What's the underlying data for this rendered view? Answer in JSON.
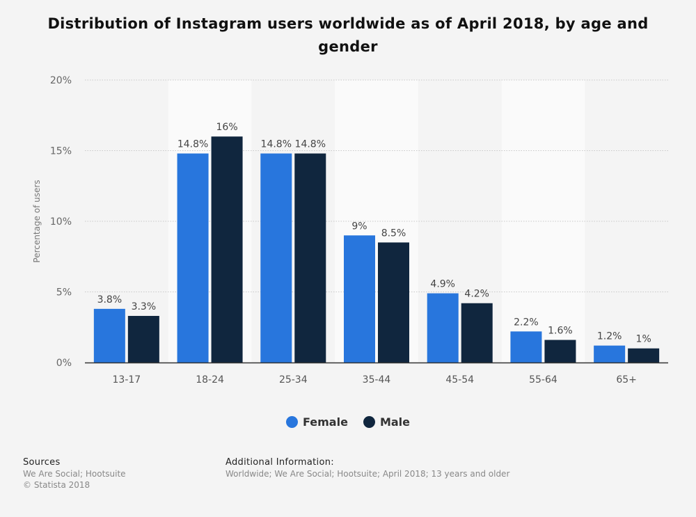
{
  "title": "Distribution of Instagram users worldwide as of April 2018, by age and gender",
  "chart_data": {
    "type": "bar",
    "categories": [
      "13-17",
      "18-24",
      "25-34",
      "35-44",
      "45-54",
      "55-64",
      "65+"
    ],
    "series": [
      {
        "name": "Female",
        "color": "#2876dd",
        "values": [
          3.8,
          14.8,
          14.8,
          9,
          4.9,
          2.2,
          1.2
        ],
        "labels": [
          "3.8%",
          "14.8%",
          "14.8%",
          "9%",
          "4.9%",
          "2.2%",
          "1.2%"
        ]
      },
      {
        "name": "Male",
        "color": "#10263e",
        "values": [
          3.3,
          16,
          14.8,
          8.5,
          4.2,
          1.6,
          1
        ],
        "labels": [
          "3.3%",
          "16%",
          "14.8%",
          "8.5%",
          "4.2%",
          "1.6%",
          "1%"
        ]
      }
    ],
    "ylabel": "Percentage of users",
    "ylim": [
      0,
      20
    ],
    "yticks": [
      0,
      5,
      10,
      15,
      20
    ],
    "ytick_labels": [
      "0%",
      "5%",
      "10%",
      "15%",
      "20%"
    ],
    "grid": true,
    "legend": "bottom-center"
  },
  "legend": {
    "female": "Female",
    "male": "Male"
  },
  "footer": {
    "sources_heading": "Sources",
    "sources_text": "We Are Social; Hootsuite",
    "copyright": "© Statista 2018",
    "additional_heading": "Additional Information:",
    "additional_text": "Worldwide; We Are Social; Hootsuite; April 2018; 13 years and older"
  }
}
